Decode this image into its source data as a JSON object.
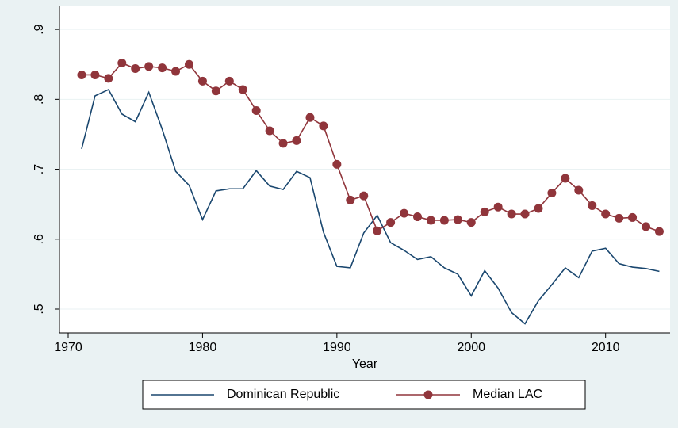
{
  "chart_data": {
    "type": "line",
    "xlabel": "Year",
    "x": [
      1971,
      1972,
      1973,
      1974,
      1975,
      1976,
      1977,
      1978,
      1979,
      1980,
      1981,
      1982,
      1983,
      1984,
      1985,
      1986,
      1987,
      1988,
      1989,
      1990,
      1991,
      1992,
      1993,
      1994,
      1995,
      1996,
      1997,
      1998,
      1999,
      2000,
      2001,
      2002,
      2003,
      2004,
      2005,
      2006,
      2007,
      2008,
      2009,
      2010,
      2011,
      2012,
      2013,
      2014
    ],
    "series": [
      {
        "name": "Dominican Republic",
        "color": "#1a476f",
        "marker": false,
        "values": [
          0.729,
          0.805,
          0.814,
          0.779,
          0.768,
          0.81,
          0.757,
          0.697,
          0.677,
          0.628,
          0.669,
          0.672,
          0.672,
          0.698,
          0.676,
          0.671,
          0.697,
          0.688,
          0.61,
          0.561,
          0.559,
          0.609,
          0.634,
          0.595,
          0.584,
          0.571,
          0.575,
          0.559,
          0.55,
          0.519,
          0.555,
          0.53,
          0.495,
          0.479,
          0.512,
          0.535,
          0.559,
          0.545,
          0.583,
          0.587,
          0.565,
          0.56,
          0.558,
          0.554
        ]
      },
      {
        "name": "Median LAC",
        "color": "#90353b",
        "marker": true,
        "values": [
          0.835,
          0.835,
          0.83,
          0.852,
          0.844,
          0.847,
          0.845,
          0.84,
          0.85,
          0.826,
          0.812,
          0.826,
          0.814,
          0.784,
          0.755,
          0.737,
          0.741,
          0.774,
          0.762,
          0.707,
          0.656,
          0.662,
          0.612,
          0.624,
          0.637,
          0.632,
          0.627,
          0.627,
          0.628,
          0.624,
          0.639,
          0.646,
          0.636,
          0.636,
          0.644,
          0.666,
          0.687,
          0.67,
          0.648,
          0.636,
          0.63,
          0.631,
          0.618,
          0.611
        ]
      }
    ],
    "xlim": [
      1969.35,
      2014.8
    ],
    "xticks": [
      1970,
      1980,
      1990,
      2000,
      2010
    ],
    "ylim": [
      0.466,
      0.933
    ],
    "yticks": [
      {
        "value": 0.5,
        "label": ".5"
      },
      {
        "value": 0.6,
        "label": ".6"
      },
      {
        "value": 0.7,
        "label": ".7"
      },
      {
        "value": 0.8,
        "label": ".8"
      },
      {
        "value": 0.9,
        "label": ".9"
      }
    ],
    "grid": true,
    "legend": "bottom"
  }
}
